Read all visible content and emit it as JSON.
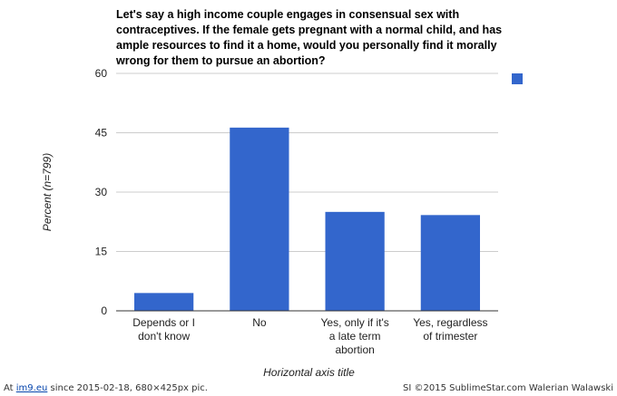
{
  "chart_data": {
    "type": "bar",
    "title_lines": [
      "Let's say a high income couple engages in consensual sex with",
      "contraceptives. If the female gets pregnant with a normal child, and has",
      "ample resources to find it a home, would you personally find it morally",
      "wrong for them to pursue an abortion?"
    ],
    "categories": [
      [
        "Depends or I",
        "don't know"
      ],
      [
        "No"
      ],
      [
        "Yes, only if it's",
        "a late term",
        "abortion"
      ],
      [
        "Yes, regardless",
        "of trimester"
      ]
    ],
    "values": [
      4.5,
      46.3,
      25.0,
      24.2
    ],
    "xlabel": "Horizontal axis title",
    "ylabel": "Percent (n=799)",
    "ylim": [
      0,
      60
    ],
    "yticks": [
      "0",
      "15",
      "30",
      "45",
      "60"
    ],
    "grid": true,
    "legend": {
      "placement": "top-right",
      "label": ""
    },
    "colors": {
      "bar": "#3366cc",
      "grid": "#cccccc",
      "axis": "#333333",
      "text": "#222222"
    }
  },
  "footer": {
    "at": "At ",
    "site": "im9.eu",
    "since": " since 2015-02-18, 680×425px pic.",
    "credit": "SI ©2015 SublimeStar.com Walerian Walawski"
  }
}
